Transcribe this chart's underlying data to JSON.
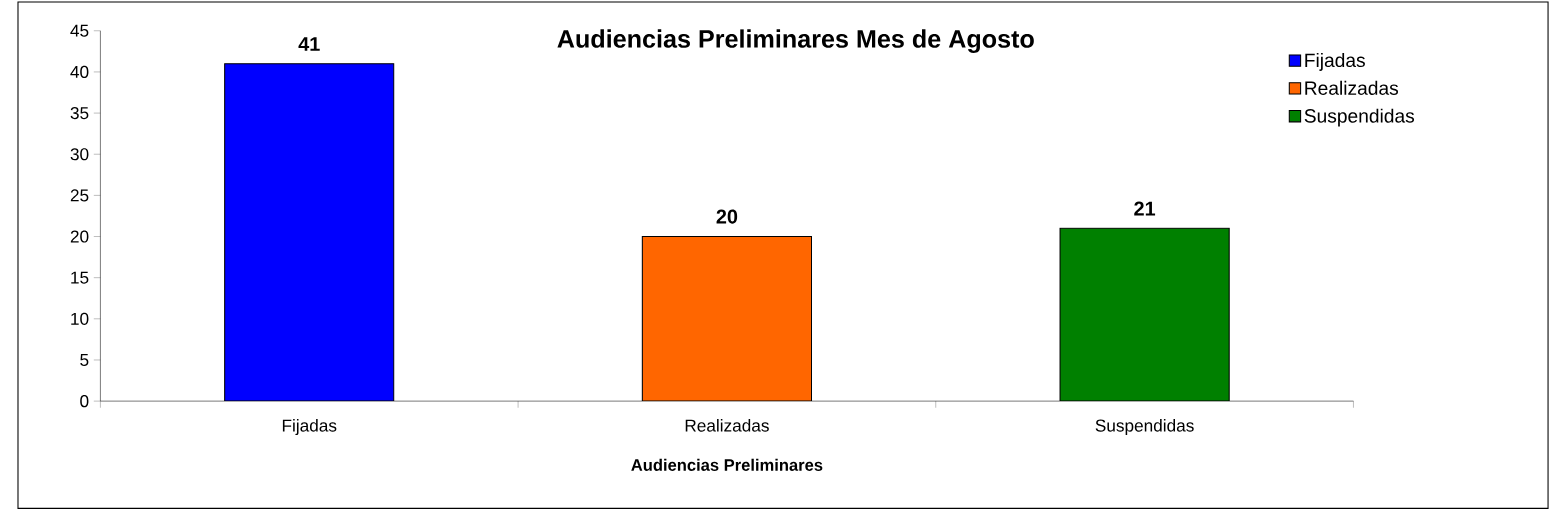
{
  "chart_data": {
    "type": "bar",
    "title": "Audiencias Preliminares Mes de Agosto",
    "xlabel": "Audiencias Preliminares",
    "categories": [
      "Fijadas",
      "Realizadas",
      "Suspendidas"
    ],
    "series": [
      {
        "name": "Fijadas",
        "color": "#0000ff",
        "values": [
          41,
          null,
          null
        ]
      },
      {
        "name": "Realizadas",
        "color": "#ff6600",
        "values": [
          null,
          20,
          null
        ]
      },
      {
        "name": "Suspendidas",
        "color": "#008000",
        "values": [
          null,
          null,
          21
        ]
      }
    ],
    "ylim": [
      0,
      45
    ],
    "yticks": [
      0,
      5,
      10,
      15,
      20,
      25,
      30,
      35,
      40,
      45
    ],
    "data_labels": true,
    "legend": "top right"
  }
}
